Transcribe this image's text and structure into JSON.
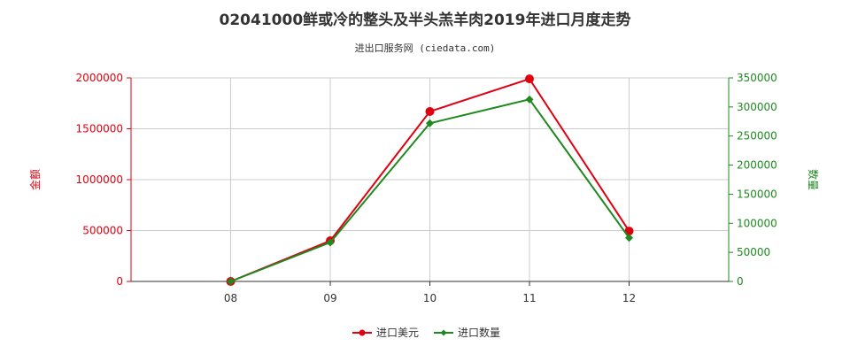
{
  "chart_data": {
    "type": "line",
    "title": "02041000鲜或冷的整头及半头羔羊肉2019年进口月度走势",
    "subtitle": "进出口服务网 (ciedata.com)",
    "categories": [
      "08",
      "09",
      "10",
      "11",
      "12"
    ],
    "y_left": {
      "label": "金额",
      "range": [
        0,
        2000000
      ],
      "ticks": [
        "0",
        "500000",
        "1000000",
        "1500000",
        "2000000"
      ],
      "color": "#e0000f"
    },
    "y_right": {
      "label": "数量",
      "range": [
        0,
        350000
      ],
      "ticks": [
        "0",
        "50000",
        "100000",
        "150000",
        "200000",
        "250000",
        "300000",
        "350000"
      ],
      "color": "#1e8a1e"
    },
    "series": [
      {
        "name": "进口美元",
        "axis": "left",
        "color": "#e0000f",
        "marker": "circle",
        "values": [
          0,
          400000,
          1670000,
          1990000,
          495000
        ]
      },
      {
        "name": "进口数量",
        "axis": "right",
        "color": "#1e8a1e",
        "marker": "diamond",
        "values": [
          0,
          67000,
          272000,
          313000,
          75000
        ]
      }
    ],
    "grid": true,
    "legend": "bottom-center"
  }
}
